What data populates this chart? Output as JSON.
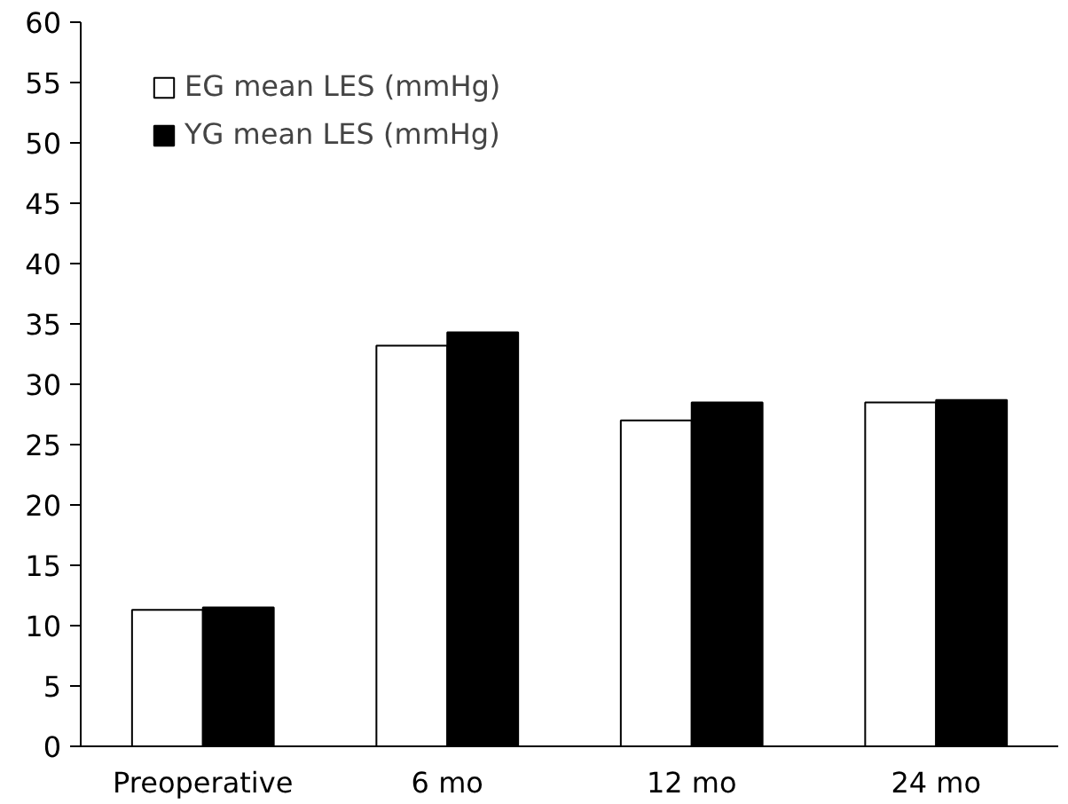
{
  "chart_data": {
    "type": "bar",
    "categories": [
      "Preoperative",
      "6 mo",
      "12 mo",
      "24 mo"
    ],
    "series": [
      {
        "name": "EG mean LES (mmHg)",
        "color": "#ffffff",
        "values": [
          11.3,
          33.2,
          27.0,
          28.5
        ]
      },
      {
        "name": "YG mean LES (mmHg)",
        "color": "#000000",
        "values": [
          11.5,
          34.3,
          28.5,
          28.7
        ]
      }
    ],
    "ylim": [
      0,
      60
    ],
    "yticks": [
      0,
      5,
      10,
      15,
      20,
      25,
      30,
      35,
      40,
      45,
      50,
      55,
      60
    ],
    "grid": false,
    "legend": "top left"
  }
}
